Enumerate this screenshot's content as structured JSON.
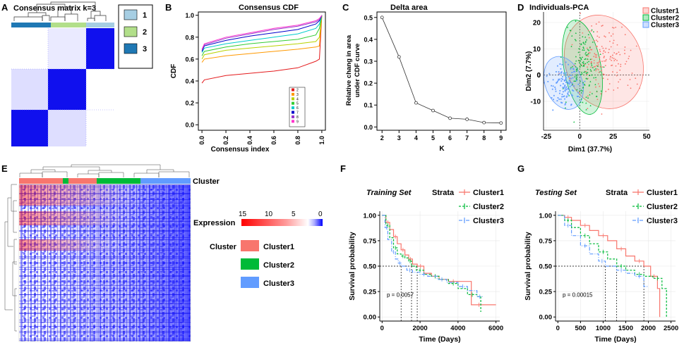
{
  "panels": {
    "A": {
      "letter": "A",
      "title": "Consensus matrix k=3",
      "legend": [
        "1",
        "2",
        "3"
      ],
      "legend_colors": [
        "#a6cee3",
        "#b2df8a",
        "#1f78b4"
      ]
    },
    "B": {
      "letter": "B"
    },
    "C": {
      "letter": "C"
    },
    "D": {
      "letter": "D"
    },
    "E": {
      "letter": "E",
      "cluster_label": "Cluster",
      "expression_label": "Expression",
      "scale_ticks": [
        "15",
        "10",
        "5",
        "0"
      ],
      "cluster_legend_title": "Cluster",
      "cluster_legend": [
        "Cluster1",
        "Cluster2",
        "Cluster3"
      ]
    },
    "F": {
      "letter": "F"
    },
    "G": {
      "letter": "G"
    }
  },
  "colors": {
    "cluster1": "#f8766d",
    "cluster2": "#00ba38",
    "cluster3": "#619cff",
    "heat_high": "#ff0000",
    "heat_low": "#0000ff"
  },
  "chart_data": [
    {
      "id": "B",
      "type": "line",
      "title": "Consensus CDF",
      "xlabel": "Consensus index",
      "ylabel": "CDF",
      "xlim": [
        0,
        1
      ],
      "ylim": [
        0,
        1
      ],
      "x_ticks": [
        "0.0",
        "0.2",
        "0.4",
        "0.6",
        "0.8",
        "1.0"
      ],
      "y_ticks": [
        "0.0",
        "0.2",
        "0.4",
        "0.6",
        "0.8",
        "1.0"
      ],
      "x": [
        0.0,
        0.02,
        0.2,
        0.4,
        0.6,
        0.8,
        0.95,
        0.98,
        1.0
      ],
      "series": [
        {
          "name": "2",
          "color": "#e41a1c",
          "values": [
            0.38,
            0.41,
            0.45,
            0.47,
            0.49,
            0.52,
            0.58,
            0.6,
            1.0
          ]
        },
        {
          "name": "3",
          "color": "#ff9900",
          "values": [
            0.57,
            0.6,
            0.63,
            0.65,
            0.67,
            0.69,
            0.71,
            0.72,
            1.0
          ]
        },
        {
          "name": "4",
          "color": "#b8d200",
          "values": [
            0.6,
            0.64,
            0.68,
            0.7,
            0.72,
            0.74,
            0.76,
            0.8,
            1.0
          ]
        },
        {
          "name": "5",
          "color": "#33cc33",
          "values": [
            0.63,
            0.67,
            0.71,
            0.74,
            0.76,
            0.78,
            0.82,
            0.88,
            1.0
          ]
        },
        {
          "name": "6",
          "color": "#00cccc",
          "values": [
            0.66,
            0.7,
            0.74,
            0.77,
            0.8,
            0.83,
            0.88,
            0.92,
            1.0
          ]
        },
        {
          "name": "7",
          "color": "#0000cc",
          "values": [
            0.67,
            0.72,
            0.77,
            0.81,
            0.84,
            0.87,
            0.92,
            0.95,
            1.0
          ]
        },
        {
          "name": "8",
          "color": "#9933cc",
          "values": [
            0.68,
            0.73,
            0.79,
            0.83,
            0.87,
            0.9,
            0.94,
            0.96,
            1.0
          ]
        },
        {
          "name": "9",
          "color": "#ff33cc",
          "values": [
            0.69,
            0.74,
            0.8,
            0.84,
            0.88,
            0.91,
            0.95,
            0.97,
            1.0
          ]
        }
      ]
    },
    {
      "id": "C",
      "type": "line",
      "title": "Delta area",
      "xlabel": "K",
      "ylabel_lines": [
        "Relative chang in area",
        "under CDF curve"
      ],
      "xlim": [
        2,
        9
      ],
      "ylim": [
        0,
        0.5
      ],
      "x_ticks": [
        "2",
        "3",
        "4",
        "5",
        "6",
        "7",
        "8",
        "9"
      ],
      "y_ticks": [
        "0.0",
        "0.1",
        "0.2",
        "0.3",
        "0.4",
        "0.5"
      ],
      "x": [
        2,
        3,
        4,
        5,
        6,
        7,
        8,
        9
      ],
      "values": [
        0.5,
        0.32,
        0.11,
        0.075,
        0.04,
        0.035,
        0.02,
        0.018
      ]
    },
    {
      "id": "D",
      "type": "scatter",
      "title": "Individuals-PCA",
      "xlabel": "Dim1 (37.7%)",
      "ylabel": "Dim2 (7.7%)",
      "xlim": [
        -27,
        52
      ],
      "ylim": [
        -21,
        24
      ],
      "x_ticks": [
        "-25",
        "0",
        "25",
        "50"
      ],
      "y_ticks": [
        "-10",
        "0",
        "10",
        "20"
      ],
      "legend": [
        "Cluster1",
        "Cluster2",
        "Cluster3"
      ],
      "groups": [
        {
          "name": "Cluster1",
          "center": [
            18,
            5
          ],
          "spread": [
            11,
            7
          ],
          "n": 170
        },
        {
          "name": "Cluster2",
          "center": [
            2,
            3
          ],
          "spread": [
            6,
            7
          ],
          "n": 140
        },
        {
          "name": "Cluster3",
          "center": [
            -12,
            -3
          ],
          "spread": [
            6,
            4
          ],
          "n": 120
        }
      ]
    },
    {
      "id": "F",
      "type": "line",
      "title": "Training Set",
      "legend_title": "Strata",
      "legend": [
        "Cluster1",
        "Cluster2",
        "Cluster3"
      ],
      "xlabel": "Time (Days)",
      "ylabel": "Survival probability",
      "xlim": [
        0,
        6200
      ],
      "ylim": [
        0,
        1
      ],
      "x_ticks": [
        "0",
        "2000",
        "4000",
        "6000"
      ],
      "y_ticks": [
        "0.00",
        "0.25",
        "0.50",
        "0.75",
        "1.00"
      ],
      "pvalue": "p = 0.0057",
      "medians": [
        1850,
        1550,
        1000
      ],
      "series": [
        {
          "name": "Cluster1",
          "times": [
            0,
            200,
            400,
            600,
            800,
            1000,
            1200,
            1400,
            1600,
            1850,
            2200,
            2600,
            3000,
            3500,
            4000,
            4700,
            5500,
            6000
          ],
          "values": [
            1.0,
            0.93,
            0.86,
            0.79,
            0.72,
            0.66,
            0.61,
            0.57,
            0.52,
            0.5,
            0.43,
            0.4,
            0.37,
            0.35,
            0.35,
            0.12,
            0.12,
            0.12
          ]
        },
        {
          "name": "Cluster2",
          "times": [
            0,
            200,
            400,
            600,
            800,
            1000,
            1200,
            1400,
            1550,
            1800,
            2200,
            2600,
            3000,
            3500,
            4000,
            4500,
            5000,
            5200
          ],
          "values": [
            1.0,
            0.9,
            0.78,
            0.68,
            0.62,
            0.6,
            0.58,
            0.55,
            0.5,
            0.46,
            0.42,
            0.4,
            0.37,
            0.33,
            0.28,
            0.22,
            0.2,
            0.05
          ]
        },
        {
          "name": "Cluster3",
          "times": [
            0,
            150,
            300,
            500,
            700,
            850,
            1000,
            1300,
            1600,
            2000,
            2400,
            2900,
            3400,
            4000,
            4500,
            5000,
            5300
          ],
          "values": [
            1.0,
            0.88,
            0.76,
            0.64,
            0.57,
            0.53,
            0.5,
            0.46,
            0.44,
            0.42,
            0.4,
            0.37,
            0.34,
            0.3,
            0.26,
            0.2,
            0.2
          ]
        }
      ]
    },
    {
      "id": "G",
      "type": "line",
      "title": "Testing Set",
      "legend_title": "Strata",
      "legend": [
        "Cluster1",
        "Cluster2",
        "Cluster3"
      ],
      "xlabel": "Time (Days)",
      "ylabel": "Survival probability",
      "xlim": [
        0,
        2600
      ],
      "ylim": [
        0,
        1
      ],
      "x_ticks": [
        "0",
        "500",
        "1000",
        "1500",
        "2000",
        "2500"
      ],
      "y_ticks": [
        "0.00",
        "0.25",
        "0.50",
        "0.75",
        "1.00"
      ],
      "pvalue": "p = 0.00015",
      "medians": [
        1900,
        1300,
        1050
      ],
      "series": [
        {
          "name": "Cluster1",
          "times": [
            0,
            150,
            300,
            500,
            700,
            900,
            1100,
            1300,
            1500,
            1700,
            1900,
            2050,
            2200,
            2250
          ],
          "values": [
            1.0,
            0.98,
            0.95,
            0.9,
            0.85,
            0.8,
            0.75,
            0.67,
            0.6,
            0.55,
            0.5,
            0.4,
            0.28,
            0.0
          ]
        },
        {
          "name": "Cluster2",
          "times": [
            0,
            150,
            300,
            500,
            700,
            900,
            1100,
            1300,
            1500,
            1700,
            1900,
            2100,
            2300,
            2400
          ],
          "values": [
            1.0,
            0.95,
            0.88,
            0.8,
            0.72,
            0.64,
            0.57,
            0.5,
            0.46,
            0.42,
            0.4,
            0.38,
            0.28,
            0.0
          ]
        },
        {
          "name": "Cluster3",
          "times": [
            0,
            150,
            300,
            500,
            700,
            900,
            1050,
            1300,
            1500,
            1700,
            1900,
            2000
          ],
          "values": [
            1.0,
            0.9,
            0.8,
            0.7,
            0.62,
            0.55,
            0.5,
            0.46,
            0.43,
            0.4,
            0.3,
            0.3
          ]
        }
      ]
    }
  ]
}
